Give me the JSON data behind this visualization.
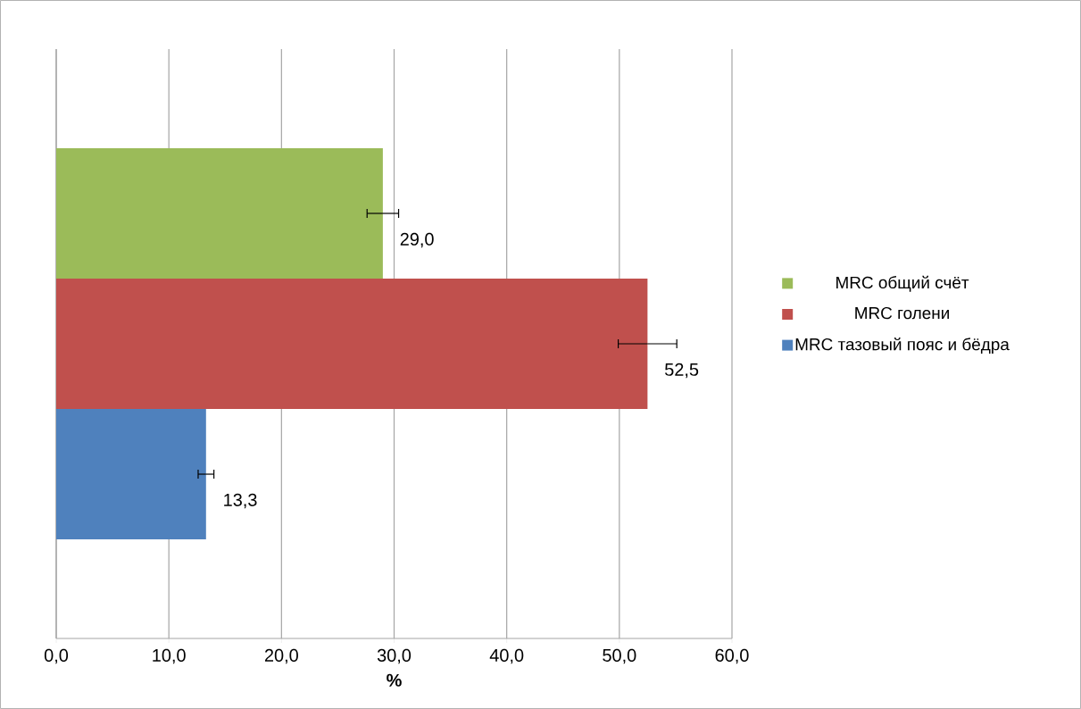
{
  "chart_data": {
    "type": "bar",
    "orientation": "horizontal",
    "xlabel": "%",
    "categories": [
      null
    ],
    "series": [
      {
        "name": "MRC тазовый пояс и бёдра",
        "color": "#4f81bd",
        "values": [
          13.3
        ],
        "errors": [
          0.7
        ],
        "value_labels": [
          "13,3"
        ]
      },
      {
        "name": "MRC голени",
        "color": "#c0504d",
        "values": [
          52.5
        ],
        "errors": [
          2.6
        ],
        "value_labels": [
          "52,5"
        ]
      },
      {
        "name": "MRC общий счёт",
        "color": "#9bbb59",
        "values": [
          29.0
        ],
        "errors": [
          1.4
        ],
        "value_labels": [
          "29,0"
        ]
      }
    ],
    "xlim": [
      0,
      60
    ],
    "xticks": [
      {
        "value": 0,
        "label": "0,0"
      },
      {
        "value": 10,
        "label": "10,0"
      },
      {
        "value": 20,
        "label": "20,0"
      },
      {
        "value": 30,
        "label": "30,0"
      },
      {
        "value": 40,
        "label": "40,0"
      },
      {
        "value": 50,
        "label": "50,0"
      },
      {
        "value": 60,
        "label": "60,0"
      }
    ],
    "grid": "x",
    "legend": "right"
  }
}
